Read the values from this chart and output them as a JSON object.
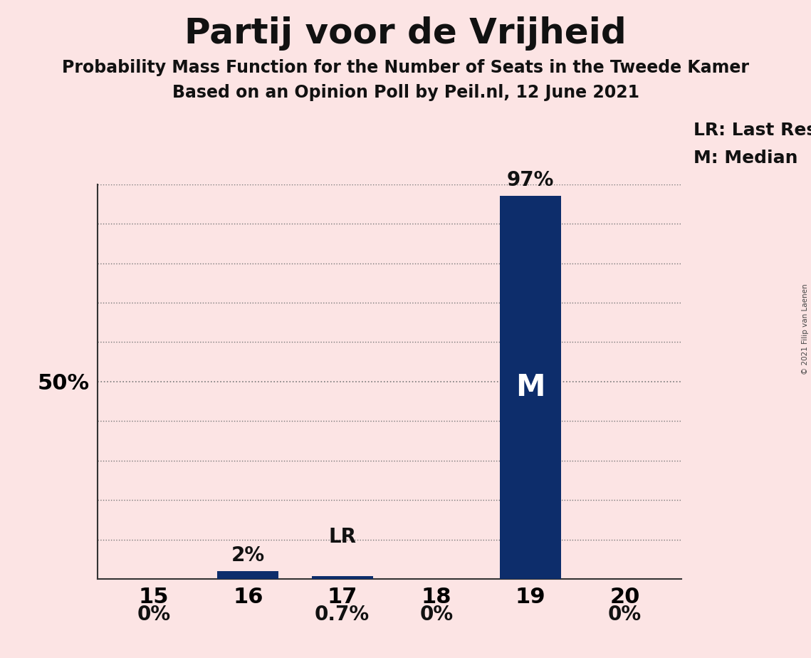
{
  "title": "Partij voor de Vrijheid",
  "subtitle1": "Probability Mass Function for the Number of Seats in the Tweede Kamer",
  "subtitle2": "Based on an Opinion Poll by Peil.nl, 12 June 2021",
  "copyright": "© 2021 Filip van Laenen",
  "categories": [
    15,
    16,
    17,
    18,
    19,
    20
  ],
  "values": [
    0.0,
    2.0,
    0.7,
    0.0,
    97.0,
    0.0
  ],
  "bar_color": "#0d2d6b",
  "background_color": "#fce4e4",
  "ylabel_50": "50%",
  "bar_labels": [
    "0%",
    "2%",
    "0.7%",
    "0%",
    "97%",
    "0%"
  ],
  "lr_seat": 17,
  "median_seat": 19,
  "legend_lr": "LR: Last Result",
  "legend_m": "M: Median",
  "ymax": 100,
  "grid_color": "#777777",
  "title_fontsize": 36,
  "subtitle_fontsize": 17,
  "tick_fontsize": 22,
  "label_fontsize": 20,
  "legend_fontsize": 18
}
